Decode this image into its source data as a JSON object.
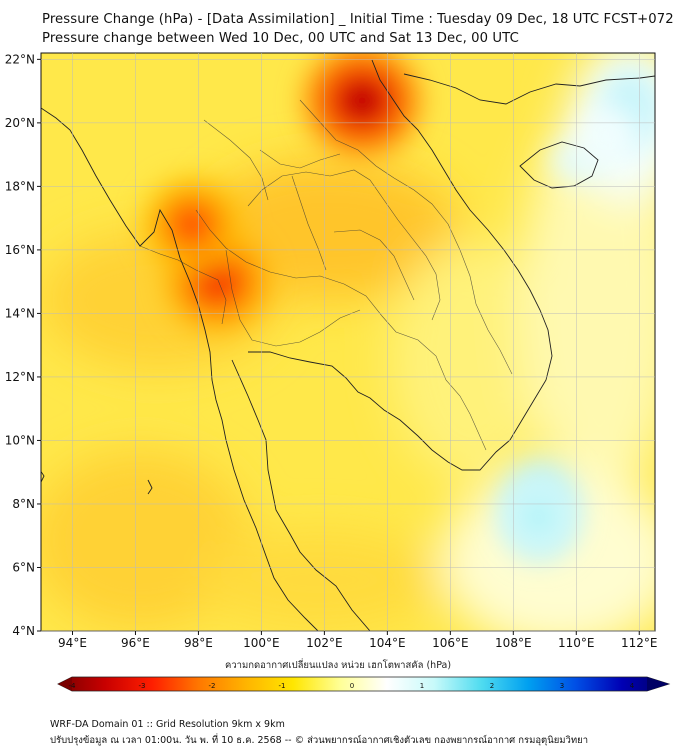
{
  "title_line1": "Pressure Change (hPa) - [Data Assimilation] _ Initial Time : Tuesday 09 Dec, 18 UTC FCST+072",
  "title_line2": "Pressure change between Wed 10 Dec, 00 UTC and Sat 13 Dec, 00 UTC",
  "map": {
    "lon_range": [
      93,
      112.5
    ],
    "lat_range": [
      4,
      22.2
    ],
    "lon_ticks": [
      94,
      96,
      98,
      100,
      102,
      104,
      106,
      108,
      110,
      112
    ],
    "lon_labels": [
      "94°E",
      "96°E",
      "98°E",
      "100°E",
      "102°E",
      "104°E",
      "106°E",
      "108°E",
      "110°E",
      "112°E"
    ],
    "lat_ticks": [
      4,
      6,
      8,
      10,
      12,
      14,
      16,
      18,
      20,
      22
    ],
    "lat_labels": [
      "4°N",
      "6°N",
      "8°N",
      "10°N",
      "12°N",
      "14°N",
      "16°N",
      "18°N",
      "20°N",
      "22°N"
    ],
    "field_features": [
      {
        "name": "max-north-laos",
        "lon": 103.2,
        "lat": 20.7,
        "value": -3.6
      },
      {
        "name": "max-western-thailand",
        "lon": 98.6,
        "lat": 15.0,
        "value": -2.9
      },
      {
        "name": "max-tenasserim",
        "lon": 97.8,
        "lat": 16.8,
        "value": -2.6
      },
      {
        "name": "min-south-china-sea",
        "lon": 108.8,
        "lat": 7.6,
        "value": 1.2
      },
      {
        "name": "min-hainan",
        "lon": 111.0,
        "lat": 19.6,
        "value": 0.6
      }
    ]
  },
  "colorbar": {
    "title": "ความกดอากาศเปลี่ยนแปลง หน่วย เฮกโตพาสคัล (hPa)",
    "min": -4,
    "max": 4,
    "ticks": [
      -4,
      -3,
      -2,
      -1,
      0,
      1,
      2,
      3,
      4
    ],
    "tick_labels": [
      "-4",
      "-3",
      "-2",
      "-1",
      "0",
      "1",
      "2",
      "3",
      "4"
    ],
    "colors": [
      "#7a0000",
      "#c80000",
      "#ff1e00",
      "#ff7800",
      "#ffb400",
      "#ffe600",
      "#ffff96",
      "#ffffff",
      "#c8fafa",
      "#50dcf0",
      "#00a0f0",
      "#0050e6",
      "#0000b4",
      "#000064"
    ]
  },
  "footer_line1": "WRF-DA Domain 01 :: Grid Resolution 9km x 9km",
  "footer_line2": "ปรับปรุงข้อมูล ณ เวลา 01:00น. วัน พ. ที่ 10 ธ.ค. 2568 -- © ส่วนพยากรณ์อากาศเชิงตัวเลข กองพยากรณ์อากาศ กรมอุตุนิยมวิทยา"
}
